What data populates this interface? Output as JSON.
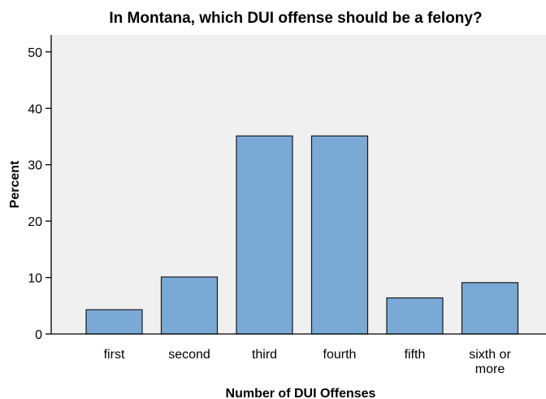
{
  "chart_data": {
    "type": "bar",
    "title": "In Montana, which DUI offense should be a felony?",
    "xlabel": "Number of DUI Offenses",
    "ylabel": "Percent",
    "categories": [
      "first",
      "second",
      "third",
      "fourth",
      "fifth",
      "sixth or more"
    ],
    "category_label_lines": [
      [
        "first"
      ],
      [
        "second"
      ],
      [
        "third"
      ],
      [
        "fourth"
      ],
      [
        "fifth"
      ],
      [
        "sixth or",
        "more"
      ]
    ],
    "values": [
      4.3,
      10.1,
      35.1,
      35.1,
      6.4,
      9.1
    ],
    "ylim": [
      0,
      53
    ],
    "yticks": [
      "0",
      "10",
      "20",
      "30",
      "40",
      "50"
    ],
    "grid": false,
    "colors": {
      "plot_background": "#f0f0f0",
      "bar_fill": "#7aa9d6",
      "bar_stroke": "#1a1a1a",
      "axis": "#000000"
    }
  }
}
